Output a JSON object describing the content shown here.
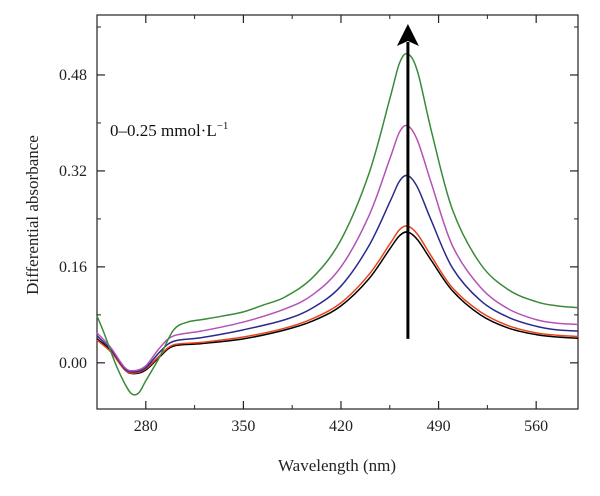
{
  "chart_data": {
    "type": "line",
    "title": "",
    "xlabel": "Wavelength (nm)",
    "ylabel": "Differential absorbance",
    "xlim": [
      245,
      590
    ],
    "ylim": [
      -0.077,
      0.58
    ],
    "xticks": [
      280,
      350,
      420,
      490,
      560
    ],
    "yticks": [
      0.0,
      0.16,
      0.32,
      0.48
    ],
    "ytick_labels": [
      "0.00",
      "0.16",
      "0.32",
      "0.48"
    ],
    "grid": false,
    "annotation": {
      "prefix": "0–0.25 mmol·L",
      "superscript": "−1"
    },
    "arrow": {
      "x": 468,
      "y_from": 0.04,
      "y_to": 0.565,
      "color": "#000000"
    },
    "series": [
      {
        "color": "#000000",
        "x": [
          245,
          255,
          265,
          272,
          280,
          290,
          300,
          320,
          350,
          380,
          400,
          420,
          440,
          455,
          462,
          468,
          475,
          485,
          500,
          520,
          540,
          560,
          575,
          590
        ],
        "y": [
          0.04,
          0.02,
          -0.012,
          -0.018,
          -0.012,
          0.01,
          0.028,
          0.032,
          0.04,
          0.055,
          0.07,
          0.095,
          0.14,
          0.19,
          0.212,
          0.218,
          0.205,
          0.17,
          0.12,
          0.08,
          0.058,
          0.047,
          0.043,
          0.041
        ]
      },
      {
        "color": "#e8441c",
        "x": [
          245,
          255,
          265,
          272,
          280,
          290,
          300,
          320,
          350,
          380,
          400,
          420,
          440,
          455,
          462,
          468,
          475,
          485,
          500,
          520,
          540,
          560,
          575,
          590
        ],
        "y": [
          0.038,
          0.018,
          -0.012,
          -0.017,
          -0.01,
          0.012,
          0.03,
          0.034,
          0.043,
          0.058,
          0.074,
          0.1,
          0.147,
          0.198,
          0.222,
          0.228,
          0.214,
          0.177,
          0.125,
          0.085,
          0.062,
          0.05,
          0.046,
          0.044
        ]
      },
      {
        "color": "#2a2a8c",
        "x": [
          245,
          255,
          265,
          272,
          280,
          290,
          300,
          320,
          350,
          380,
          400,
          420,
          440,
          455,
          462,
          468,
          475,
          485,
          500,
          520,
          540,
          560,
          575,
          590
        ],
        "y": [
          0.045,
          0.022,
          -0.01,
          -0.015,
          -0.008,
          0.018,
          0.036,
          0.042,
          0.055,
          0.072,
          0.092,
          0.128,
          0.195,
          0.268,
          0.303,
          0.312,
          0.292,
          0.236,
          0.158,
          0.104,
          0.076,
          0.061,
          0.055,
          0.053
        ]
      },
      {
        "color": "#b552b5",
        "x": [
          245,
          255,
          265,
          272,
          280,
          290,
          300,
          320,
          350,
          380,
          400,
          420,
          440,
          455,
          462,
          468,
          475,
          485,
          500,
          520,
          540,
          560,
          575,
          590
        ],
        "y": [
          0.05,
          0.025,
          -0.008,
          -0.013,
          -0.005,
          0.025,
          0.045,
          0.053,
          0.068,
          0.09,
          0.114,
          0.16,
          0.245,
          0.34,
          0.385,
          0.395,
          0.37,
          0.298,
          0.195,
          0.126,
          0.09,
          0.072,
          0.066,
          0.064
        ]
      },
      {
        "color": "#3a8a3a",
        "x": [
          245,
          250,
          258,
          265,
          270,
          275,
          280,
          290,
          300,
          310,
          320,
          335,
          350,
          365,
          380,
          400,
          420,
          440,
          455,
          462,
          468,
          475,
          485,
          500,
          520,
          540,
          560,
          575,
          590
        ],
        "y": [
          0.078,
          0.05,
          0.0,
          -0.035,
          -0.052,
          -0.05,
          -0.03,
          0.01,
          0.055,
          0.068,
          0.072,
          0.078,
          0.085,
          0.097,
          0.11,
          0.143,
          0.205,
          0.315,
          0.44,
          0.5,
          0.515,
          0.485,
          0.385,
          0.255,
          0.165,
          0.122,
          0.102,
          0.095,
          0.092
        ]
      }
    ]
  }
}
